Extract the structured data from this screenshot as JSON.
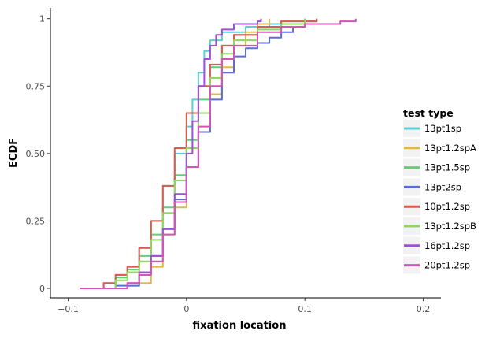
{
  "chart_data": {
    "type": "line",
    "title": "",
    "xlabel": "fixation location",
    "ylabel": "ECDF",
    "xlim": [
      -0.115,
      0.215
    ],
    "ylim": [
      -0.035,
      1.04
    ],
    "x_ticks": [
      -0.1,
      0,
      0.1,
      0.2
    ],
    "x_tick_labels": [
      "−0.1",
      "0",
      "0.1",
      "0.2"
    ],
    "y_ticks": [
      0,
      0.25,
      0.5,
      0.75,
      1
    ],
    "y_tick_labels": [
      "0",
      "0.25",
      "0.50",
      "0.75",
      "1"
    ],
    "grid": false,
    "legend": {
      "title": "test type",
      "placement": "right"
    },
    "series": [
      {
        "name": "13pt1sp",
        "color": "#5bd0d4",
        "points": [
          [
            -0.09,
            0
          ],
          [
            -0.07,
            0.02
          ],
          [
            -0.06,
            0.05
          ],
          [
            -0.05,
            0.08
          ],
          [
            -0.04,
            0.15
          ],
          [
            -0.03,
            0.25
          ],
          [
            -0.02,
            0.38
          ],
          [
            -0.01,
            0.5
          ],
          [
            0,
            0.6
          ],
          [
            0.005,
            0.7
          ],
          [
            0.01,
            0.8
          ],
          [
            0.015,
            0.88
          ],
          [
            0.02,
            0.92
          ],
          [
            0.03,
            0.95
          ],
          [
            0.05,
            0.97
          ],
          [
            0.07,
            0.98
          ],
          [
            0.1,
            1
          ]
        ]
      },
      {
        "name": "13pt1.2spA",
        "color": "#e2b84a",
        "points": [
          [
            -0.09,
            0
          ],
          [
            -0.05,
            0.01
          ],
          [
            -0.04,
            0.02
          ],
          [
            -0.03,
            0.08
          ],
          [
            -0.02,
            0.2
          ],
          [
            -0.01,
            0.3
          ],
          [
            0,
            0.45
          ],
          [
            0.01,
            0.58
          ],
          [
            0.02,
            0.72
          ],
          [
            0.03,
            0.82
          ],
          [
            0.04,
            0.9
          ],
          [
            0.05,
            0.95
          ],
          [
            0.06,
            0.98
          ],
          [
            0.07,
            1
          ]
        ]
      },
      {
        "name": "13pt1.5sp",
        "color": "#5cd37a",
        "points": [
          [
            -0.09,
            0
          ],
          [
            -0.06,
            0.04
          ],
          [
            -0.05,
            0.07
          ],
          [
            -0.04,
            0.12
          ],
          [
            -0.03,
            0.2
          ],
          [
            -0.02,
            0.3
          ],
          [
            -0.01,
            0.42
          ],
          [
            0,
            0.55
          ],
          [
            0.01,
            0.7
          ],
          [
            0.02,
            0.82
          ],
          [
            0.03,
            0.9
          ],
          [
            0.04,
            0.94
          ],
          [
            0.06,
            0.97
          ],
          [
            0.08,
            0.99
          ],
          [
            0.1,
            1
          ]
        ]
      },
      {
        "name": "13pt2sp",
        "color": "#5d6ed3",
        "points": [
          [
            -0.09,
            0
          ],
          [
            -0.06,
            0.01
          ],
          [
            -0.04,
            0.05
          ],
          [
            -0.03,
            0.12
          ],
          [
            -0.02,
            0.22
          ],
          [
            -0.01,
            0.33
          ],
          [
            0,
            0.45
          ],
          [
            0.01,
            0.58
          ],
          [
            0.02,
            0.7
          ],
          [
            0.03,
            0.8
          ],
          [
            0.04,
            0.86
          ],
          [
            0.05,
            0.89
          ],
          [
            0.06,
            0.91
          ],
          [
            0.07,
            0.93
          ],
          [
            0.08,
            0.95
          ],
          [
            0.09,
            0.97
          ],
          [
            0.1,
            0.99
          ],
          [
            0.11,
            1
          ]
        ]
      },
      {
        "name": "10pt1.2sp",
        "color": "#dc5a4f",
        "points": [
          [
            -0.09,
            0
          ],
          [
            -0.07,
            0.02
          ],
          [
            -0.06,
            0.05
          ],
          [
            -0.05,
            0.08
          ],
          [
            -0.04,
            0.15
          ],
          [
            -0.03,
            0.25
          ],
          [
            -0.02,
            0.38
          ],
          [
            -0.01,
            0.52
          ],
          [
            0,
            0.65
          ],
          [
            0.01,
            0.75
          ],
          [
            0.02,
            0.83
          ],
          [
            0.03,
            0.9
          ],
          [
            0.04,
            0.94
          ],
          [
            0.06,
            0.97
          ],
          [
            0.08,
            0.99
          ],
          [
            0.11,
            1
          ]
        ]
      },
      {
        "name": "13pt1.2spB",
        "color": "#8fd85a",
        "points": [
          [
            -0.09,
            0
          ],
          [
            -0.06,
            0.03
          ],
          [
            -0.05,
            0.06
          ],
          [
            -0.04,
            0.1
          ],
          [
            -0.03,
            0.18
          ],
          [
            -0.02,
            0.28
          ],
          [
            -0.01,
            0.4
          ],
          [
            0,
            0.52
          ],
          [
            0.01,
            0.65
          ],
          [
            0.02,
            0.78
          ],
          [
            0.03,
            0.87
          ],
          [
            0.04,
            0.92
          ],
          [
            0.06,
            0.96
          ],
          [
            0.08,
            0.98
          ],
          [
            0.1,
            1
          ]
        ]
      },
      {
        "name": "16pt1.2sp",
        "color": "#a050d8",
        "points": [
          [
            -0.09,
            0
          ],
          [
            -0.05,
            0.02
          ],
          [
            -0.04,
            0.06
          ],
          [
            -0.03,
            0.12
          ],
          [
            -0.02,
            0.22
          ],
          [
            -0.01,
            0.35
          ],
          [
            0,
            0.5
          ],
          [
            0.005,
            0.62
          ],
          [
            0.01,
            0.75
          ],
          [
            0.015,
            0.85
          ],
          [
            0.02,
            0.9
          ],
          [
            0.025,
            0.94
          ],
          [
            0.03,
            0.96
          ],
          [
            0.04,
            0.98
          ],
          [
            0.06,
            0.99
          ],
          [
            0.063,
            1
          ]
        ]
      },
      {
        "name": "20pt1.2sp",
        "color": "#d653b8",
        "points": [
          [
            -0.09,
            0
          ],
          [
            -0.05,
            0.02
          ],
          [
            -0.04,
            0.05
          ],
          [
            -0.03,
            0.1
          ],
          [
            -0.02,
            0.2
          ],
          [
            -0.01,
            0.32
          ],
          [
            0,
            0.45
          ],
          [
            0.01,
            0.6
          ],
          [
            0.02,
            0.75
          ],
          [
            0.03,
            0.85
          ],
          [
            0.04,
            0.9
          ],
          [
            0.06,
            0.95
          ],
          [
            0.08,
            0.97
          ],
          [
            0.1,
            0.98
          ],
          [
            0.13,
            0.99
          ],
          [
            0.143,
            1
          ]
        ]
      }
    ]
  }
}
